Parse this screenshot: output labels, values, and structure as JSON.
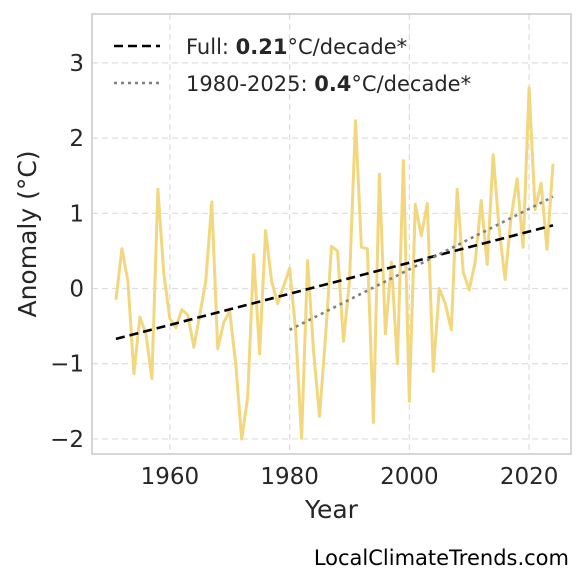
{
  "chart_data": {
    "type": "line",
    "xlabel": "Year",
    "ylabel": "Anomaly (°C)",
    "xlim": [
      1947,
      2027
    ],
    "ylim": [
      -2.2,
      3.65
    ],
    "xticks": [
      1960,
      1980,
      2000,
      2020
    ],
    "yticks": [
      -2,
      -1,
      0,
      1,
      2,
      3
    ],
    "ytick_labels": [
      "−2",
      "−1",
      "0",
      "1",
      "2",
      "3"
    ],
    "grid": true,
    "legend_position": "top-left",
    "colors": {
      "series": "#f2d77e",
      "full_trend": "#000000",
      "recent_trend": "#808080"
    },
    "series": [
      {
        "x": [
          1951,
          1952,
          1953,
          1954,
          1955,
          1956,
          1957,
          1958,
          1959,
          1960,
          1961,
          1962,
          1963,
          1964,
          1965,
          1966,
          1967,
          1968,
          1969,
          1970,
          1971,
          1972,
          1973,
          1974,
          1975,
          1976,
          1977,
          1978,
          1979,
          1980,
          1981,
          1982,
          1983,
          1984,
          1985,
          1986,
          1987,
          1988,
          1989,
          1990,
          1991,
          1992,
          1993,
          1994,
          1995,
          1996,
          1997,
          1998,
          1999,
          2000,
          2001,
          2002,
          2003,
          2004,
          2005,
          2006,
          2007,
          2008,
          2009,
          2010,
          2011,
          2012,
          2013,
          2014,
          2015,
          2016,
          2017,
          2018,
          2019,
          2020,
          2021,
          2022,
          2023,
          2024
        ],
        "values": [
          -0.15,
          0.53,
          0.1,
          -1.13,
          -0.38,
          -0.6,
          -1.2,
          1.32,
          0.2,
          -0.4,
          -0.52,
          -0.28,
          -0.35,
          -0.78,
          -0.35,
          0.1,
          1.15,
          -0.8,
          -0.45,
          -0.3,
          -1.0,
          -2.0,
          -1.45,
          0.45,
          -0.87,
          0.77,
          0.1,
          -0.2,
          0.03,
          0.27,
          -0.55,
          -1.99,
          0.37,
          -0.82,
          -1.7,
          -0.65,
          0.56,
          0.5,
          -0.7,
          0.1,
          2.23,
          0.55,
          0.53,
          -1.78,
          1.52,
          -0.6,
          0.35,
          -1.0,
          1.7,
          -1.5,
          1.12,
          0.7,
          1.13,
          -1.1,
          0.0,
          -0.2,
          -0.55,
          1.32,
          0.22,
          -0.02,
          0.35,
          1.17,
          0.32,
          1.78,
          0.8,
          0.12,
          0.95,
          1.46,
          0.55,
          2.67,
          1.05,
          1.4,
          0.52,
          1.66
        ]
      }
    ],
    "trends": [
      {
        "x": [
          1951,
          2024
        ],
        "values": [
          -0.67,
          0.84
        ],
        "style": "dashed"
      },
      {
        "x": [
          1980,
          2024
        ],
        "values": [
          -0.55,
          1.22
        ],
        "style": "dotted"
      }
    ],
    "legend": [
      {
        "prefix": "Full: ",
        "bold": "0.21",
        "suffix": "°C/decade*"
      },
      {
        "prefix": "1980-2025: ",
        "bold": "0.4",
        "suffix": "°C/decade*"
      }
    ]
  },
  "credit": "LocalClimateTrends.com"
}
